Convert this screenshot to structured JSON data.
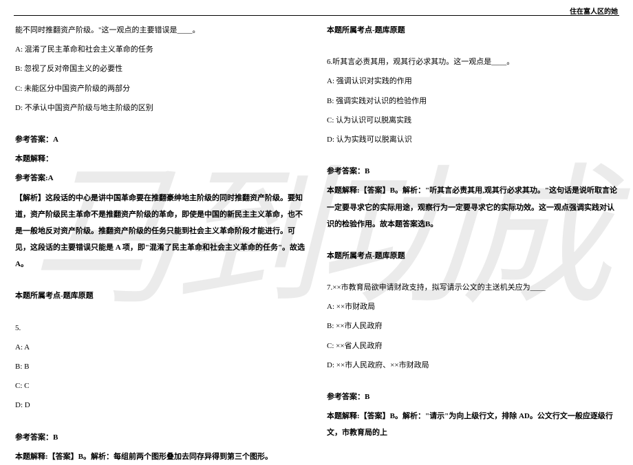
{
  "header": {
    "right_text": "住在富人区的她"
  },
  "watermark": "马到功成",
  "left": {
    "q_stem_cont": "能不同时推翻资产阶级。\"这一观点的主要错误是____。",
    "q4": {
      "opt_a": "A:  混淆了民主革命和社会主义革命的任务",
      "opt_b": "B:  忽视了反对帝国主义的必要性",
      "opt_c": "C:  未能区分中国资产阶级的两部分",
      "opt_d": "D:  不承认中国资产阶级与地主阶级的区别",
      "ans_label": "参考答案：A",
      "explain_label": "本题解释：",
      "ans_label2": "参考答案:A",
      "explain": "【解析】这段话的中心是讲中国革命要在推翻豪绅地主阶级的同时推翻资产阶级。要知道，资产阶级民主革命不是推翻资产阶级的革命，即使是中国的新民主主义革命，也不是一般地反对资产阶级。推翻资产阶级的任务只能到社会主义革命阶段才能进行。可见，这段话的主要错误只能是 A 项，即\"混淆了民主革命和社会主义革命的任务\"。故选 A。",
      "topic": "本题所属考点-题库原题"
    },
    "q5": {
      "num": "5.",
      "opt_a": "A: A",
      "opt_b": "B: B",
      "opt_c": "C: C",
      "opt_d": "D: D",
      "ans_label": "参考答案：B",
      "explain": "本题解释:【答案】B。解析：每组前两个图形叠加去同存异得到第三个图形。"
    }
  },
  "right": {
    "topic_prev": "本题所属考点-题库原题",
    "q6": {
      "stem": "6.听其言必责其用，观其行必求其功。这一观点是____。",
      "opt_a": "A:  强调认识对实践的作用",
      "opt_b": "B:  强调实践对认识的检验作用",
      "opt_c": "C:  认为认识可以脱离实践",
      "opt_d": "D:  认为实践可以脱离认识",
      "ans_label": "参考答案：B",
      "explain": "本题解释:【答案】B。解析：\"听其言必责其用,观其行必求其功。\"这句话是说听取言论一定要寻求它的实际用途，观察行为一定要寻求它的实际功效。这一观点强调实践对认识的检验作用。故本题答案选B。",
      "topic": "本题所属考点-题库原题"
    },
    "q7": {
      "stem": "7.××市教育局欲申请财政支持，拟写请示公文的主送机关应为____",
      "opt_a": "A: ××市财政局",
      "opt_b": "B: ××市人民政府",
      "opt_c": "C: ××省人民政府",
      "opt_d": "D: ××市人民政府、××市财政局",
      "ans_label": "参考答案：B",
      "explain": "本题解释:【答案】B。解析：\"请示\"为向上级行文，排除 AD。公文行文一般应逐级行文，市教育局的上"
    }
  }
}
